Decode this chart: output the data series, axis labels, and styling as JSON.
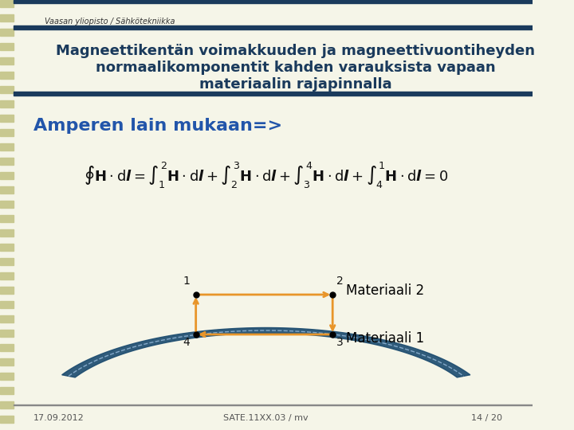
{
  "bg_color": "#f5f5e8",
  "header_bar_color": "#1a3a5c",
  "header_bar_color2": "#2d5a8c",
  "header_text": "Vaasan yliopisto / Sähkötekniikka",
  "title_text": "Magneettikentän voimakkuuden ja magneettivuontiheyden\nnormaalikomponentit kahden varauksista vapaan\nmateriaalin rajapinnalla",
  "title_color": "#1a3a5c",
  "left_bar_color": "#c8c890",
  "ampere_text": "Amperen lain mukaan=>",
  "ampere_color": "#2255aa",
  "footer_left": "17.09.2012",
  "footer_center": "SATE.11XX.03 / mv",
  "footer_right": "14 / 20",
  "footer_color": "#555555",
  "orange_color": "#e8952a",
  "dark_blue": "#1a3a5c",
  "curve_color": "#1a4a6e",
  "dot_color": "#000000",
  "material2_label": "Materiaali 2",
  "material1_label": "Materiaali 1",
  "label_color": "#000000"
}
